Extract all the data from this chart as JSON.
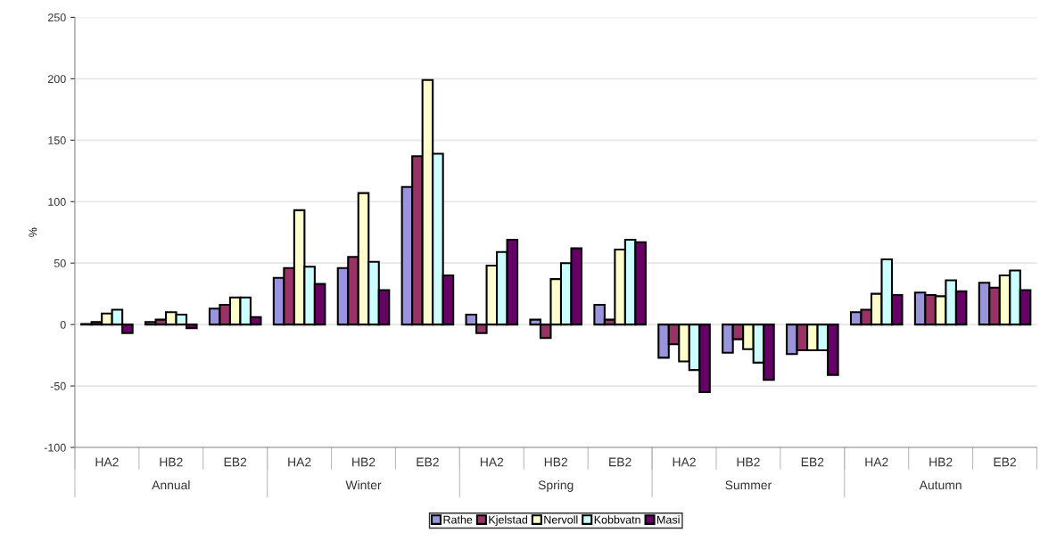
{
  "chart_data": {
    "type": "bar",
    "ylabel": "%",
    "categories": [
      "HA2",
      "HB2",
      "EB2",
      "HA2",
      "HB2",
      "EB2",
      "HA2",
      "HB2",
      "EB2",
      "HA2",
      "HB2",
      "EB2",
      "HA2",
      "HB2",
      "EB2"
    ],
    "annotations": [
      "Annual",
      "Winter",
      "Spring",
      "Summer",
      "Autumn"
    ],
    "series": [
      {
        "name": "Rathe",
        "color": "#9a94dc",
        "values": [
          0.5,
          2,
          13,
          38,
          46,
          112,
          8,
          4,
          16,
          -27,
          -23,
          -24,
          10,
          26,
          34
        ]
      },
      {
        "name": "Kjelstad",
        "color": "#993366",
        "values": [
          2,
          4,
          16,
          46,
          55,
          137,
          -7,
          -11,
          4,
          -16,
          -12,
          -21,
          12,
          24,
          30
        ]
      },
      {
        "name": "Nervoll",
        "color": "#ffffcc",
        "values": [
          9,
          10,
          22,
          93,
          107,
          199,
          48,
          37,
          61,
          -30,
          -20,
          -21,
          25,
          23,
          40
        ]
      },
      {
        "name": "Kobbvatn",
        "color": "#ccffff",
        "values": [
          12,
          8,
          22,
          47,
          51,
          139,
          59,
          50,
          69,
          -37,
          -31,
          -21,
          53,
          36,
          44
        ]
      },
      {
        "name": "Masi",
        "color": "#660066",
        "values": [
          -7,
          -3,
          6,
          33,
          28,
          40,
          69,
          62,
          67,
          -55,
          -45,
          -41,
          24,
          27,
          28
        ]
      }
    ],
    "ylim": [
      -100,
      250
    ],
    "yticks": [
      -100,
      -50,
      0,
      50,
      100,
      150,
      200,
      250
    ],
    "grid": "y",
    "legend": "bottom"
  }
}
